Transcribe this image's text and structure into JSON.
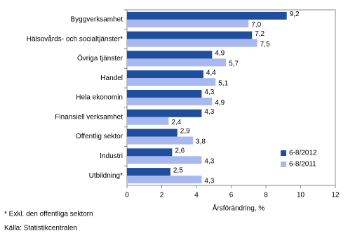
{
  "chart_data": {
    "type": "hbar",
    "categories": [
      "Byggverksamhet",
      "Hälsovårds- och socialtjänster*",
      "Övriga tjänster",
      "Handel",
      "Hela ekonomin",
      "Finansiell verksamhet",
      "Offentlig sektor",
      "Industri",
      "Utbildning*"
    ],
    "series": [
      {
        "name": "6-8/2012",
        "color": "#1f4e9e",
        "values": [
          9.2,
          7.2,
          4.9,
          4.4,
          4.3,
          4.3,
          2.9,
          2.6,
          2.5
        ],
        "value_labels": [
          "9,2",
          "7,2",
          "4,9",
          "4,4",
          "4,3",
          "4,3",
          "2,9",
          "2,6",
          "2,5"
        ]
      },
      {
        "name": "6-8/2011",
        "color": "#a8b9ef",
        "values": [
          7.0,
          7.5,
          5.7,
          5.1,
          4.9,
          2.4,
          3.8,
          4.3,
          4.3
        ],
        "value_labels": [
          "7,0",
          "7,5",
          "5,7",
          "5,1",
          "4,9",
          "2,4",
          "3,8",
          "4,3",
          "4,3"
        ]
      }
    ],
    "xlim": [
      0,
      12
    ],
    "xticks": [
      0,
      2,
      4,
      6,
      8,
      10,
      12
    ],
    "x_label": "Årsförändring, %",
    "legend": "lower right",
    "notes": [
      "* Exkl. den offentliga sektorn",
      "Källa: Statistikcentralen"
    ]
  }
}
